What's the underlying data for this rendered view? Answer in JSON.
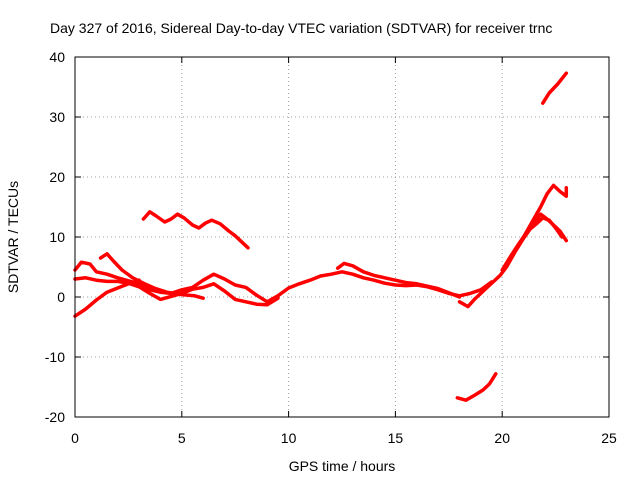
{
  "chart_data": {
    "type": "line",
    "title": "Day 327 of 2016, Sidereal Day-to-day VTEC variation (SDTVAR) for receiver trnc",
    "xlabel": "GPS time / hours",
    "ylabel": "SDTVAR / TECUs",
    "xlim": [
      0,
      25
    ],
    "ylim": [
      -20,
      40
    ],
    "xticks": [
      "0",
      "5",
      "10",
      "15",
      "20",
      "25"
    ],
    "yticks": [
      "-20",
      "-10",
      "0",
      "10",
      "20",
      "30",
      "40"
    ],
    "grid": true,
    "color": "#ff0000",
    "series": [
      {
        "name": "track-1",
        "points": [
          [
            0,
            -3.2
          ],
          [
            0.5,
            -2
          ],
          [
            1,
            -0.5
          ],
          [
            1.5,
            0.8
          ],
          [
            2,
            1.5
          ],
          [
            2.5,
            2.2
          ],
          [
            3,
            2.8
          ]
        ]
      },
      {
        "name": "track-2",
        "points": [
          [
            0,
            4.5
          ],
          [
            0.3,
            5.8
          ],
          [
            0.7,
            5.5
          ],
          [
            1,
            4.2
          ],
          [
            1.5,
            3.8
          ],
          [
            2,
            3.2
          ],
          [
            2.5,
            2.7
          ],
          [
            3,
            2.2
          ],
          [
            3.5,
            1.2
          ],
          [
            4,
            0.8
          ],
          [
            4.5,
            0.6
          ],
          [
            5,
            1.2
          ],
          [
            5.5,
            1.6
          ],
          [
            6,
            2.8
          ],
          [
            6.5,
            3.8
          ],
          [
            7,
            3
          ],
          [
            7.5,
            2
          ],
          [
            8,
            1.6
          ],
          [
            8.5,
            0.3
          ],
          [
            9,
            -0.8
          ],
          [
            9.5,
            0.2
          ],
          [
            10,
            1.5
          ],
          [
            10.5,
            2.2
          ],
          [
            11,
            2.8
          ],
          [
            11.5,
            3.5
          ],
          [
            12,
            3.8
          ],
          [
            12.5,
            4.2
          ],
          [
            13,
            3.8
          ],
          [
            13.5,
            3.2
          ],
          [
            14,
            2.8
          ],
          [
            14.5,
            2.3
          ],
          [
            15,
            2
          ],
          [
            15.5,
            1.9
          ],
          [
            16,
            2
          ],
          [
            16.5,
            1.7
          ],
          [
            17,
            1.2
          ],
          [
            17.5,
            0.6
          ],
          [
            18,
            0.2
          ],
          [
            18.5,
            0.6
          ],
          [
            19,
            1.2
          ],
          [
            19.5,
            2.5
          ]
        ]
      },
      {
        "name": "track-3",
        "points": [
          [
            0,
            3
          ],
          [
            0.5,
            3.2
          ],
          [
            1,
            2.8
          ],
          [
            1.5,
            2.6
          ],
          [
            2,
            2.6
          ],
          [
            2.5,
            2.3
          ],
          [
            3,
            1.7
          ],
          [
            3.5,
            0.6
          ],
          [
            4,
            -0.4
          ],
          [
            4.5,
            0.1
          ],
          [
            5,
            0.6
          ],
          [
            5.5,
            1.3
          ],
          [
            6,
            1.6
          ],
          [
            6.5,
            2.2
          ],
          [
            7,
            1
          ],
          [
            7.5,
            -0.4
          ],
          [
            8,
            -0.8
          ],
          [
            8.5,
            -1.2
          ],
          [
            9,
            -1.3
          ],
          [
            9.5,
            -0.2
          ]
        ]
      },
      {
        "name": "track-4",
        "points": [
          [
            1.2,
            6.5
          ],
          [
            1.5,
            7.2
          ],
          [
            1.8,
            6
          ],
          [
            2.2,
            4.5
          ],
          [
            2.7,
            3.2
          ],
          [
            3.2,
            2.3
          ],
          [
            3.7,
            1.5
          ],
          [
            4.3,
            0.8
          ],
          [
            5,
            0.4
          ],
          [
            5.6,
            0.2
          ],
          [
            6,
            -0.2
          ]
        ]
      },
      {
        "name": "track-5",
        "points": [
          [
            3.2,
            13
          ],
          [
            3.5,
            14.2
          ],
          [
            3.8,
            13.5
          ],
          [
            4.2,
            12.5
          ],
          [
            4.5,
            13
          ],
          [
            4.8,
            13.8
          ],
          [
            5.1,
            13.2
          ],
          [
            5.5,
            12
          ],
          [
            5.8,
            11.5
          ],
          [
            6.1,
            12.3
          ],
          [
            6.4,
            12.8
          ],
          [
            6.8,
            12.2
          ],
          [
            7.2,
            11
          ],
          [
            7.5,
            10.2
          ],
          [
            7.8,
            9.2
          ],
          [
            8.1,
            8.2
          ]
        ]
      },
      {
        "name": "track-6",
        "points": [
          [
            12.3,
            4.8
          ],
          [
            12.6,
            5.6
          ],
          [
            13,
            5.2
          ],
          [
            13.5,
            4.2
          ],
          [
            14,
            3.6
          ],
          [
            14.5,
            3.2
          ],
          [
            15,
            2.8
          ],
          [
            15.5,
            2.4
          ],
          [
            16,
            2.2
          ],
          [
            16.5,
            1.8
          ],
          [
            17,
            1.4
          ],
          [
            17.5,
            0.7
          ],
          [
            18,
            0
          ]
        ]
      },
      {
        "name": "track-7",
        "points": [
          [
            18,
            -0.8
          ],
          [
            18.4,
            -1.6
          ],
          [
            18.7,
            -0.4
          ],
          [
            19,
            0.6
          ],
          [
            19.3,
            1.6
          ],
          [
            19.6,
            2.6
          ],
          [
            19.9,
            3.6
          ],
          [
            20.2,
            5
          ],
          [
            20.6,
            7.5
          ],
          [
            21,
            9.8
          ],
          [
            21.4,
            11.8
          ],
          [
            21.8,
            13.8
          ],
          [
            22.1,
            13
          ],
          [
            22.4,
            12
          ],
          [
            22.7,
            11
          ],
          [
            23,
            9.4
          ]
        ]
      },
      {
        "name": "track-8",
        "points": [
          [
            20.2,
            5.5
          ],
          [
            20.6,
            7.8
          ],
          [
            21,
            10
          ],
          [
            21.4,
            12.5
          ],
          [
            21.8,
            15
          ],
          [
            22.1,
            17.2
          ],
          [
            22.4,
            18.6
          ],
          [
            22.7,
            17.6
          ],
          [
            23,
            16.8
          ],
          [
            23,
            18.2
          ]
        ]
      },
      {
        "name": "track-9",
        "points": [
          [
            20,
            4.5
          ],
          [
            20.4,
            6.8
          ],
          [
            20.8,
            9
          ],
          [
            21.2,
            11
          ],
          [
            21.6,
            12.2
          ],
          [
            21.9,
            13.2
          ],
          [
            22.2,
            12.8
          ],
          [
            22.5,
            11.5
          ],
          [
            22.8,
            10
          ]
        ]
      },
      {
        "name": "track-10",
        "points": [
          [
            21.9,
            32.3
          ],
          [
            22.2,
            34
          ],
          [
            22.6,
            35.5
          ],
          [
            23,
            37.3
          ]
        ]
      },
      {
        "name": "track-11",
        "points": [
          [
            17.9,
            -16.8
          ],
          [
            18.3,
            -17.2
          ],
          [
            18.7,
            -16.4
          ],
          [
            19.1,
            -15.5
          ],
          [
            19.4,
            -14.5
          ],
          [
            19.7,
            -12.8
          ]
        ]
      }
    ]
  }
}
